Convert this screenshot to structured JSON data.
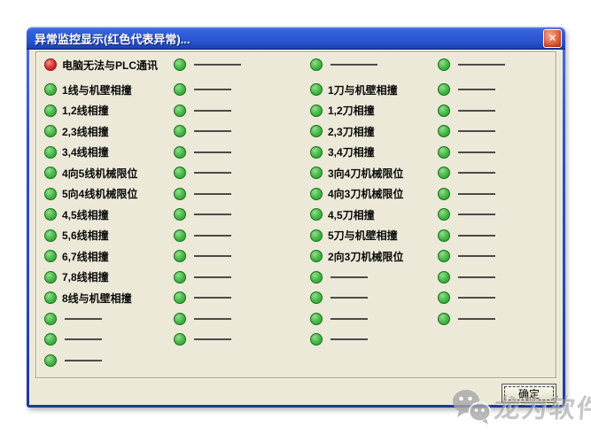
{
  "window": {
    "title": "异常监控显示(红色代表异常)...",
    "close_icon": "✕"
  },
  "panel": {
    "columns": [
      {
        "items": [
          {
            "led": "red",
            "label": "电脑无法与PLC通讯",
            "dash": "none"
          },
          {
            "led": "green",
            "label": "1线与机壁相撞",
            "dash": "none"
          },
          {
            "led": "green",
            "label": "1,2线相撞",
            "dash": "none"
          },
          {
            "led": "green",
            "label": "2,3线相撞",
            "dash": "none"
          },
          {
            "led": "green",
            "label": "3,4线相撞",
            "dash": "none"
          },
          {
            "led": "green",
            "label": "4向5线机械限位",
            "dash": "none"
          },
          {
            "led": "green",
            "label": "5向4线机械限位",
            "dash": "none"
          },
          {
            "led": "green",
            "label": "4,5线相撞",
            "dash": "none"
          },
          {
            "led": "green",
            "label": "5,6线相撞",
            "dash": "none"
          },
          {
            "led": "green",
            "label": "6,7线相撞",
            "dash": "none"
          },
          {
            "led": "green",
            "label": "7,8线相撞",
            "dash": "none"
          },
          {
            "led": "green",
            "label": "8线与机壁相撞",
            "dash": "none"
          },
          {
            "led": "green",
            "label": "",
            "dash": "short"
          },
          {
            "led": "green",
            "label": "",
            "dash": "short"
          },
          {
            "led": "green",
            "label": "",
            "dash": "short"
          }
        ]
      },
      {
        "items": [
          {
            "led": "green",
            "label": "",
            "dash": "long"
          },
          {
            "led": "green",
            "label": "",
            "dash": "short"
          },
          {
            "led": "green",
            "label": "",
            "dash": "short"
          },
          {
            "led": "green",
            "label": "",
            "dash": "short"
          },
          {
            "led": "green",
            "label": "",
            "dash": "short"
          },
          {
            "led": "green",
            "label": "",
            "dash": "short"
          },
          {
            "led": "green",
            "label": "",
            "dash": "short"
          },
          {
            "led": "green",
            "label": "",
            "dash": "short"
          },
          {
            "led": "green",
            "label": "",
            "dash": "short"
          },
          {
            "led": "green",
            "label": "",
            "dash": "short"
          },
          {
            "led": "green",
            "label": "",
            "dash": "short"
          },
          {
            "led": "green",
            "label": "",
            "dash": "short"
          },
          {
            "led": "green",
            "label": "",
            "dash": "short"
          },
          {
            "led": "green",
            "label": "",
            "dash": "short"
          }
        ]
      },
      {
        "items": [
          {
            "led": "green",
            "label": "",
            "dash": "long"
          },
          {
            "led": "green",
            "label": "1刀与机壁相撞",
            "dash": "none"
          },
          {
            "led": "green",
            "label": "1,2刀相撞",
            "dash": "none"
          },
          {
            "led": "green",
            "label": "2,3刀相撞",
            "dash": "none"
          },
          {
            "led": "green",
            "label": "3,4刀相撞",
            "dash": "none"
          },
          {
            "led": "green",
            "label": "3向4刀机械限位",
            "dash": "none"
          },
          {
            "led": "green",
            "label": "4向3刀机械限位",
            "dash": "none"
          },
          {
            "led": "green",
            "label": "4,5刀相撞",
            "dash": "none"
          },
          {
            "led": "green",
            "label": "5刀与机壁相撞",
            "dash": "none"
          },
          {
            "led": "green",
            "label": "2向3刀机械限位",
            "dash": "none"
          },
          {
            "led": "green",
            "label": "",
            "dash": "short"
          },
          {
            "led": "green",
            "label": "",
            "dash": "short"
          },
          {
            "led": "green",
            "label": "",
            "dash": "short"
          },
          {
            "led": "green",
            "label": "",
            "dash": "short"
          }
        ]
      },
      {
        "items": [
          {
            "led": "green",
            "label": "",
            "dash": "long"
          },
          {
            "led": "green",
            "label": "",
            "dash": "short"
          },
          {
            "led": "green",
            "label": "",
            "dash": "short"
          },
          {
            "led": "green",
            "label": "",
            "dash": "short"
          },
          {
            "led": "green",
            "label": "",
            "dash": "short"
          },
          {
            "led": "green",
            "label": "",
            "dash": "short"
          },
          {
            "led": "green",
            "label": "",
            "dash": "short"
          },
          {
            "led": "green",
            "label": "",
            "dash": "short"
          },
          {
            "led": "green",
            "label": "",
            "dash": "short"
          },
          {
            "led": "green",
            "label": "",
            "dash": "short"
          },
          {
            "led": "green",
            "label": "",
            "dash": "short"
          },
          {
            "led": "green",
            "label": "",
            "dash": "short"
          },
          {
            "led": "green",
            "label": "",
            "dash": "short"
          }
        ]
      }
    ]
  },
  "footer": {
    "ok_label": "确定"
  },
  "watermark": {
    "icon": "wechat-icon",
    "text": "龙为软件"
  },
  "colors": {
    "titlebar_blue": "#2f5cd6",
    "frame_blue": "#2549b4",
    "dialog_background": "#ece9d8",
    "led_green": "#44b644",
    "led_red": "#d6312a",
    "close_button_red": "#e3613d"
  }
}
